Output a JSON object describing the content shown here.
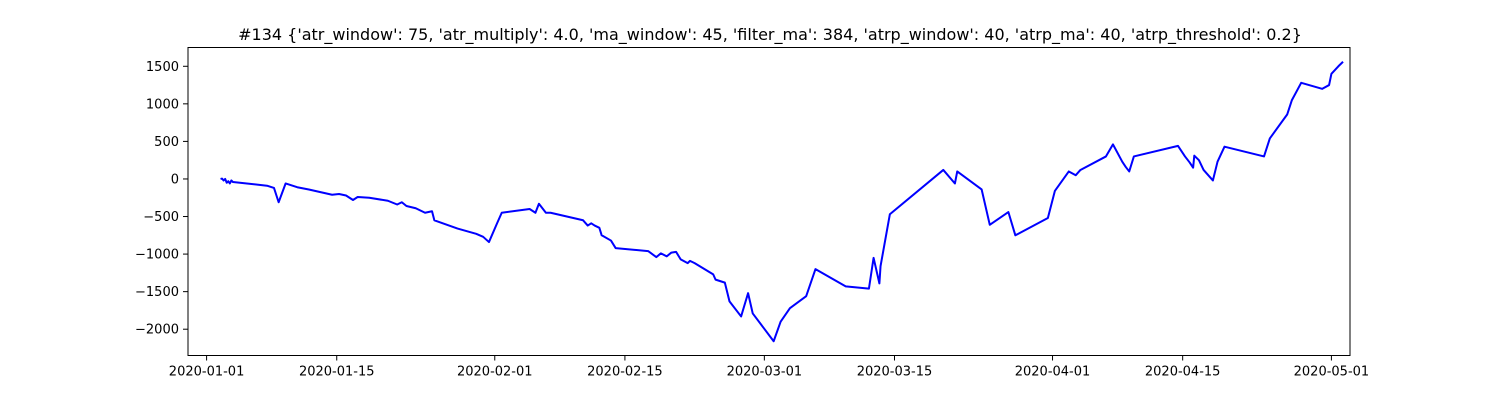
{
  "chart_data": {
    "type": "line",
    "title": "#134 {'atr_window': 75, 'atr_multiply': 4.0, 'ma_window': 45, 'filter_ma': 384, 'atrp_window': 40, 'atrp_ma': 40, 'atrp_threshold': 0.2}",
    "xlabel": "",
    "ylabel": "",
    "x_type": "date",
    "xlim": [
      "2019-12-30",
      "2020-05-03"
    ],
    "ylim": [
      -2350,
      1750
    ],
    "grid": false,
    "legend": "none",
    "colors": {
      "line": "#0000ff",
      "axes": "#000000",
      "background": "#ffffff"
    },
    "xticks": [
      {
        "value": "2020-01-01",
        "label": "2020-01-01"
      },
      {
        "value": "2020-01-15",
        "label": "2020-01-15"
      },
      {
        "value": "2020-02-01",
        "label": "2020-02-01"
      },
      {
        "value": "2020-02-15",
        "label": "2020-02-15"
      },
      {
        "value": "2020-03-01",
        "label": "2020-03-01"
      },
      {
        "value": "2020-03-15",
        "label": "2020-03-15"
      },
      {
        "value": "2020-04-01",
        "label": "2020-04-01"
      },
      {
        "value": "2020-04-15",
        "label": "2020-04-15"
      },
      {
        "value": "2020-05-01",
        "label": "2020-05-01"
      }
    ],
    "yticks": [
      {
        "value": 1500,
        "label": "1500"
      },
      {
        "value": 1000,
        "label": "1000"
      },
      {
        "value": 500,
        "label": "500"
      },
      {
        "value": 0,
        "label": "0"
      },
      {
        "value": -500,
        "label": "−500"
      },
      {
        "value": -1000,
        "label": "−1000"
      },
      {
        "value": -1500,
        "label": "−1500"
      },
      {
        "value": -2000,
        "label": "−2000"
      }
    ],
    "series": [
      {
        "points": [
          [
            "2020-01-02T12:00",
            0
          ],
          [
            "2020-01-02T16:00",
            5
          ],
          [
            "2020-01-02T20:00",
            -20
          ],
          [
            "2020-01-03T00:00",
            0
          ],
          [
            "2020-01-03T04:00",
            -50
          ],
          [
            "2020-01-03T08:00",
            -30
          ],
          [
            "2020-01-03T12:00",
            -60
          ],
          [
            "2020-01-03T16:00",
            -20
          ],
          [
            "2020-01-03T20:00",
            -40
          ],
          [
            "2020-01-07T12:00",
            -90
          ],
          [
            "2020-01-08T06:00",
            -120
          ],
          [
            "2020-01-08T18:00",
            -310
          ],
          [
            "2020-01-09T12:00",
            -60
          ],
          [
            "2020-01-10T18:00",
            -110
          ],
          [
            "2020-01-12T00:00",
            -140
          ],
          [
            "2020-01-14T12:00",
            -210
          ],
          [
            "2020-01-15T06:00",
            -200
          ],
          [
            "2020-01-16T00:00",
            -220
          ],
          [
            "2020-01-16T18:00",
            -280
          ],
          [
            "2020-01-17T06:00",
            -240
          ],
          [
            "2020-01-18T12:00",
            -250
          ],
          [
            "2020-01-20T12:00",
            -290
          ],
          [
            "2020-01-21T12:00",
            -340
          ],
          [
            "2020-01-22T00:00",
            -310
          ],
          [
            "2020-01-22T12:00",
            -360
          ],
          [
            "2020-01-23T12:00",
            -390
          ],
          [
            "2020-01-24T12:00",
            -450
          ],
          [
            "2020-01-25T06:00",
            -430
          ],
          [
            "2020-01-25T12:00",
            -550
          ],
          [
            "2020-01-28T00:00",
            -660
          ],
          [
            "2020-01-30T00:00",
            -730
          ],
          [
            "2020-01-30T18:00",
            -770
          ],
          [
            "2020-01-31T09:00",
            -840
          ],
          [
            "2020-02-01T06:00",
            -590
          ],
          [
            "2020-02-01T18:00",
            -450
          ],
          [
            "2020-02-04T18:00",
            -400
          ],
          [
            "2020-02-05T09:00",
            -450
          ],
          [
            "2020-02-05T18:00",
            -330
          ],
          [
            "2020-02-06T12:00",
            -450
          ],
          [
            "2020-02-07T00:00",
            -450
          ],
          [
            "2020-02-10T12:00",
            -550
          ],
          [
            "2020-02-11T00:00",
            -620
          ],
          [
            "2020-02-11T09:00",
            -590
          ],
          [
            "2020-02-11T18:00",
            -620
          ],
          [
            "2020-02-12T06:00",
            -650
          ],
          [
            "2020-02-12T12:00",
            -750
          ],
          [
            "2020-02-13T12:00",
            -820
          ],
          [
            "2020-02-14T00:00",
            -920
          ],
          [
            "2020-02-17T12:00",
            -960
          ],
          [
            "2020-02-18T09:00",
            -1040
          ],
          [
            "2020-02-18T21:00",
            -990
          ],
          [
            "2020-02-19T12:00",
            -1030
          ],
          [
            "2020-02-20T00:00",
            -980
          ],
          [
            "2020-02-20T12:00",
            -970
          ],
          [
            "2020-02-21T00:00",
            -1070
          ],
          [
            "2020-02-21T18:00",
            -1120
          ],
          [
            "2020-02-22T00:00",
            -1090
          ],
          [
            "2020-02-22T12:00",
            -1120
          ],
          [
            "2020-02-24T12:00",
            -1270
          ],
          [
            "2020-02-24T18:00",
            -1340
          ],
          [
            "2020-02-25T18:00",
            -1380
          ],
          [
            "2020-02-26T06:00",
            -1630
          ],
          [
            "2020-02-27T12:00",
            -1830
          ],
          [
            "2020-02-28T06:00",
            -1520
          ],
          [
            "2020-02-28T18:00",
            -1790
          ],
          [
            "2020-03-02T00:00",
            -2160
          ],
          [
            "2020-03-02T18:00",
            -1900
          ],
          [
            "2020-03-03T18:00",
            -1720
          ],
          [
            "2020-03-05T12:00",
            -1560
          ],
          [
            "2020-03-06T12:00",
            -1200
          ],
          [
            "2020-03-09T18:00",
            -1430
          ],
          [
            "2020-03-12T06:00",
            -1460
          ],
          [
            "2020-03-12T18:00",
            -1050
          ],
          [
            "2020-03-13T09:00",
            -1390
          ],
          [
            "2020-03-13T12:00",
            -1160
          ],
          [
            "2020-03-14T12:00",
            -470
          ],
          [
            "2020-03-20T06:00",
            120
          ],
          [
            "2020-03-21T12:00",
            -60
          ],
          [
            "2020-03-21T18:00",
            100
          ],
          [
            "2020-03-24T09:00",
            -140
          ],
          [
            "2020-03-25T06:00",
            -610
          ],
          [
            "2020-03-27T06:00",
            -440
          ],
          [
            "2020-03-28T00:00",
            -750
          ],
          [
            "2020-03-31T12:00",
            -520
          ],
          [
            "2020-04-01T06:00",
            -160
          ],
          [
            "2020-04-02T18:00",
            100
          ],
          [
            "2020-04-03T12:00",
            50
          ],
          [
            "2020-04-04T00:00",
            120
          ],
          [
            "2020-04-06T18:00",
            300
          ],
          [
            "2020-04-07T12:00",
            460
          ],
          [
            "2020-04-08T12:00",
            230
          ],
          [
            "2020-04-08T21:00",
            160
          ],
          [
            "2020-04-09T06:00",
            100
          ],
          [
            "2020-04-09T18:00",
            300
          ],
          [
            "2020-04-14T12:00",
            440
          ],
          [
            "2020-04-15T06:00",
            300
          ],
          [
            "2020-04-15T18:00",
            220
          ],
          [
            "2020-04-16T03:00",
            150
          ],
          [
            "2020-04-16T06:00",
            310
          ],
          [
            "2020-04-16T18:00",
            250
          ],
          [
            "2020-04-17T06:00",
            120
          ],
          [
            "2020-04-18T06:00",
            -20
          ],
          [
            "2020-04-18T18:00",
            230
          ],
          [
            "2020-04-19T12:00",
            430
          ],
          [
            "2020-04-23T18:00",
            300
          ],
          [
            "2020-04-24T09:00",
            540
          ],
          [
            "2020-04-26T06:00",
            860
          ],
          [
            "2020-04-26T18:00",
            1050
          ],
          [
            "2020-04-27T18:00",
            1280
          ],
          [
            "2020-04-30T00:00",
            1200
          ],
          [
            "2020-04-30T18:00",
            1250
          ],
          [
            "2020-05-01T00:00",
            1400
          ],
          [
            "2020-05-01T18:00",
            1500
          ],
          [
            "2020-05-02T06:00",
            1560
          ]
        ]
      }
    ]
  }
}
